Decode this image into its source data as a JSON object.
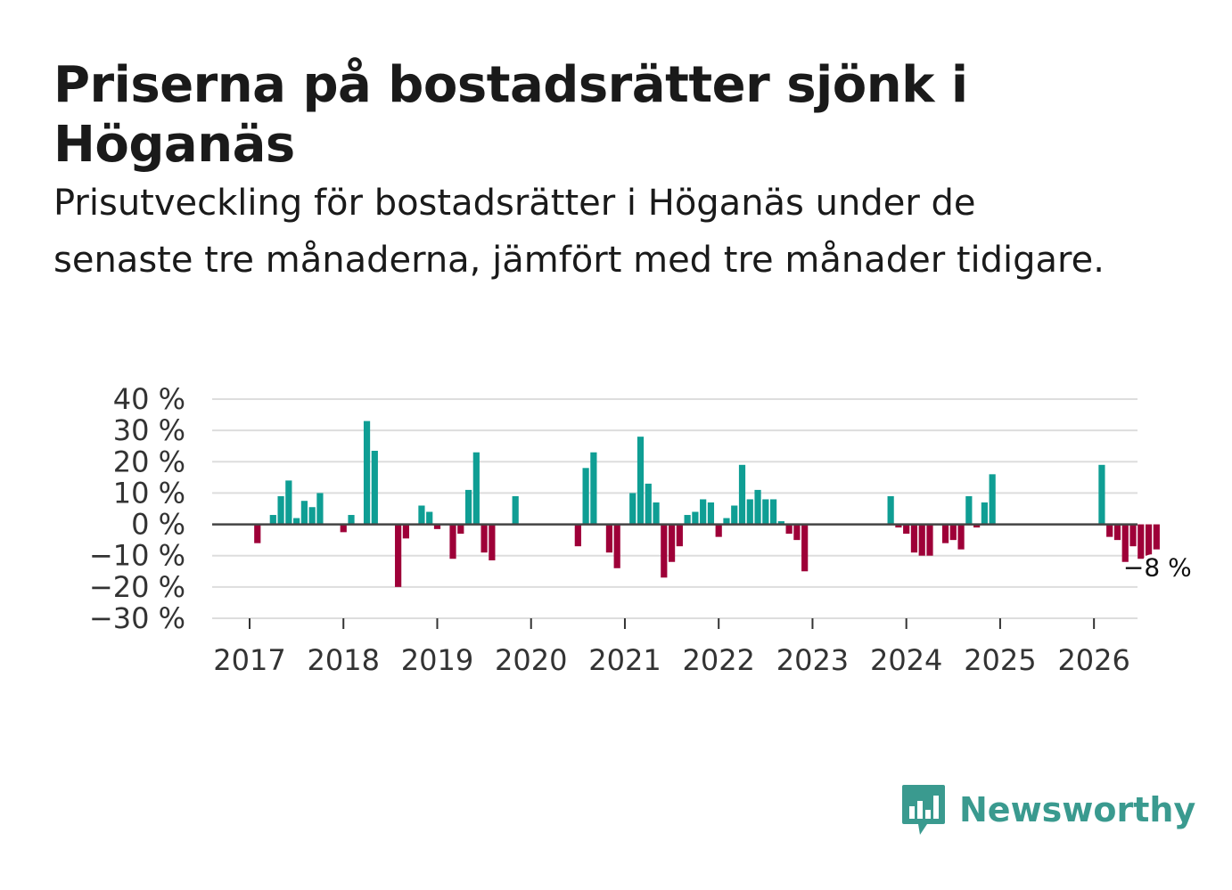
{
  "title": "Priserna på bostadsrätter sjönk i Höganäs",
  "subtitle": "Prisutveckling för bostadsrätter i Höganäs under de senaste tre månaderna, jämfört med tre månader tidigare.",
  "brand": {
    "name": "Newsworthy",
    "icon": "bar-chart-speech-bubble-icon"
  },
  "colors": {
    "positive": "#0f9e94",
    "negative": "#9e0038",
    "grid": "#dddddd",
    "zero": "#444444",
    "brand": "#3a9a8f"
  },
  "chart_data": {
    "type": "bar",
    "title": "Priserna på bostadsrätter sjönk i Höganäs",
    "ylabel": "",
    "xlabel": "",
    "ylim": [
      -30,
      40
    ],
    "y_ticks": [
      40,
      30,
      20,
      10,
      0,
      -10,
      -20,
      -30
    ],
    "y_tick_labels": [
      "40 %",
      "30 %",
      "20 %",
      "10 %",
      "0 %",
      "−10 %",
      "−20 %",
      "−30 %"
    ],
    "x_ticks": [
      {
        "label": "2017",
        "index": 0
      },
      {
        "label": "2018",
        "index": 12
      },
      {
        "label": "2019",
        "index": 24
      },
      {
        "label": "2020",
        "index": 36
      },
      {
        "label": "2021",
        "index": 48
      },
      {
        "label": "2022",
        "index": 60
      },
      {
        "label": "2023",
        "index": 72
      },
      {
        "label": "2024",
        "index": 84
      },
      {
        "label": "2025",
        "index": 96
      },
      {
        "label": "2026",
        "index": 108
      }
    ],
    "start_index": -1,
    "values": [
      null,
      null,
      -6,
      null,
      3,
      9,
      14,
      2,
      7.5,
      5.5,
      10,
      null,
      null,
      -2.5,
      3,
      null,
      33,
      23.5,
      null,
      null,
      -20,
      -4.5,
      null,
      6,
      4,
      -1.5,
      null,
      -11,
      -3,
      11,
      23,
      -9,
      -11.5,
      null,
      null,
      9,
      null,
      null,
      null,
      null,
      null,
      null,
      null,
      -7,
      18,
      23,
      null,
      -9,
      -14,
      null,
      10,
      28,
      13,
      7,
      -17,
      -12,
      -7,
      3,
      4,
      8,
      7,
      -4,
      2,
      6,
      19,
      8,
      11,
      8,
      8,
      1,
      -3,
      -5,
      -15,
      null,
      null,
      null,
      null,
      null,
      null,
      null,
      null,
      null,
      null,
      9,
      -1,
      -3,
      -9,
      -10,
      -10,
      null,
      -6,
      -5,
      -8,
      9,
      -1,
      7,
      16,
      null,
      null,
      null,
      null,
      null,
      null,
      null,
      null,
      null,
      null,
      null,
      null,
      null,
      19,
      -4,
      -5,
      -12,
      -7,
      -11,
      -10,
      -8
    ],
    "annotation": {
      "label": "−8 %",
      "value": -8,
      "position": "last-bar"
    }
  }
}
